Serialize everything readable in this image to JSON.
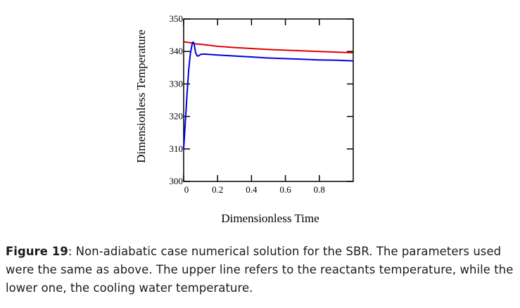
{
  "chart_data": {
    "type": "line",
    "title": "",
    "xlabel": "Dimensionless Time",
    "ylabel": "Dimensionless Temperature",
    "xlim": [
      0,
      1
    ],
    "ylim": [
      300,
      350
    ],
    "xticks": [
      0,
      0.2,
      0.4,
      0.6,
      0.8
    ],
    "xtick_labels": [
      "0",
      "0.2",
      "0.4",
      "0.6",
      "0.8"
    ],
    "yticks": [
      300,
      310,
      320,
      330,
      340,
      350
    ],
    "ytick_labels": [
      "300",
      "310",
      "320",
      "330",
      "340",
      "350"
    ],
    "grid": false,
    "series": [
      {
        "color": "#e00000",
        "x": [
          0,
          0.05,
          0.06,
          0.08,
          0.1,
          0.15,
          0.2,
          0.3,
          0.4,
          0.5,
          0.6,
          0.7,
          0.8,
          0.9,
          1.0
        ],
        "y": [
          343.0,
          342.6,
          342.4,
          342.3,
          342.2,
          341.9,
          341.6,
          341.2,
          340.9,
          340.6,
          340.4,
          340.2,
          340.0,
          339.8,
          339.6
        ]
      },
      {
        "color": "#0000e0",
        "x": [
          0,
          0.005,
          0.01,
          0.015,
          0.02,
          0.03,
          0.04,
          0.05,
          0.055,
          0.06,
          0.065,
          0.07,
          0.08,
          0.09,
          0.1,
          0.12,
          0.15,
          0.2,
          0.3,
          0.4,
          0.5,
          0.6,
          0.7,
          0.8,
          0.9,
          1.0
        ],
        "y": [
          310.0,
          314.0,
          318.5,
          322.5,
          327.0,
          334.5,
          339.5,
          342.3,
          342.9,
          342.6,
          341.3,
          339.7,
          338.6,
          338.7,
          339.1,
          339.2,
          339.1,
          338.9,
          338.6,
          338.3,
          338.0,
          337.8,
          337.6,
          337.4,
          337.3,
          337.1
        ]
      }
    ]
  },
  "caption": {
    "label": "Figure 19",
    "text": ": Non-adiabatic case numerical solution for the SBR. The parameters used were the same as above. The upper line refers to the reactants temperature, while the lower one, the cooling water temperature."
  }
}
